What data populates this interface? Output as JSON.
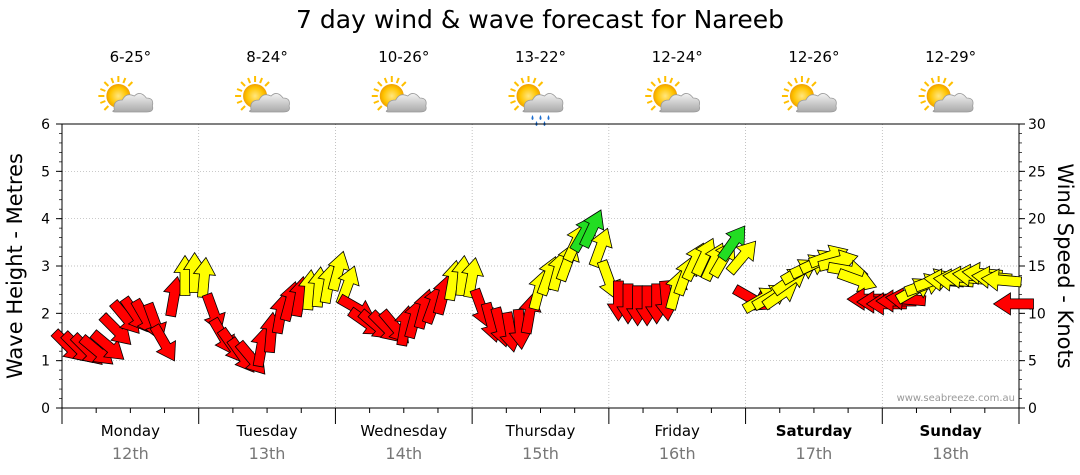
{
  "chart_data": {
    "type": "scatter",
    "title": "7 day wind & wave forecast for Nareeb",
    "y_left_label": "Wave Height - Metres",
    "y_right_label": "Wind Speed - Knots",
    "y_left_range": [
      0,
      6
    ],
    "y_right_range": [
      0,
      30
    ],
    "y_left_ticks": [
      "0",
      "1",
      "2",
      "3",
      "4",
      "5",
      "6"
    ],
    "y_right_ticks": [
      "0",
      "5",
      "10",
      "15",
      "20",
      "25",
      "30"
    ],
    "grid": true,
    "credit": "www.seabreeze.com.au",
    "days": [
      {
        "name": "Monday",
        "date": "12th",
        "temp": "6-25°",
        "weather": "partly-cloudy-icon",
        "bold": false
      },
      {
        "name": "Tuesday",
        "date": "13th",
        "temp": "8-24°",
        "weather": "partly-cloudy-icon",
        "bold": false
      },
      {
        "name": "Wednesday",
        "date": "14th",
        "temp": "10-26°",
        "weather": "partly-cloudy-icon",
        "bold": false
      },
      {
        "name": "Thursday",
        "date": "15th",
        "temp": "13-22°",
        "weather": "showers-icon",
        "bold": false
      },
      {
        "name": "Friday",
        "date": "16th",
        "temp": "12-24°",
        "weather": "partly-cloudy-icon",
        "bold": false
      },
      {
        "name": "Saturday",
        "date": "17th",
        "temp": "12-26°",
        "weather": "partly-cloudy-icon",
        "bold": true
      },
      {
        "name": "Sunday",
        "date": "18th",
        "temp": "12-29°",
        "weather": "partly-cloudy-icon",
        "bold": true
      }
    ],
    "wind_colors": {
      "red": "#ff0000",
      "yellow": "#ffff00",
      "green": "#22dd22"
    },
    "wind_note": "Arrow direction = wind heading (degrees, 0 = up/north, clockwise); y = wind speed in knots (right axis)",
    "wind": [
      {
        "t": 0.05,
        "kn": 6.5,
        "dir": 135,
        "color": "red"
      },
      {
        "t": 0.12,
        "kn": 6.3,
        "dir": 135,
        "color": "red"
      },
      {
        "t": 0.19,
        "kn": 6.1,
        "dir": 135,
        "color": "red"
      },
      {
        "t": 0.26,
        "kn": 6.0,
        "dir": 130,
        "color": "red"
      },
      {
        "t": 0.34,
        "kn": 6.5,
        "dir": 130,
        "color": "red"
      },
      {
        "t": 0.4,
        "kn": 8.2,
        "dir": 135,
        "color": "red"
      },
      {
        "t": 0.47,
        "kn": 9.5,
        "dir": 140,
        "color": "red"
      },
      {
        "t": 0.54,
        "kn": 9.8,
        "dir": 145,
        "color": "red"
      },
      {
        "t": 0.61,
        "kn": 9.5,
        "dir": 150,
        "color": "red"
      },
      {
        "t": 0.68,
        "kn": 9.0,
        "dir": 160,
        "color": "red"
      },
      {
        "t": 0.75,
        "kn": 6.8,
        "dir": 150,
        "color": "red"
      },
      {
        "t": 0.82,
        "kn": 11.8,
        "dir": 10,
        "color": "red"
      },
      {
        "t": 0.9,
        "kn": 14.0,
        "dir": 0,
        "color": "yellow"
      },
      {
        "t": 0.97,
        "kn": 14.3,
        "dir": 0,
        "color": "yellow"
      },
      {
        "t": 1.04,
        "kn": 13.8,
        "dir": 5,
        "color": "yellow"
      },
      {
        "t": 1.11,
        "kn": 10.0,
        "dir": 160,
        "color": "red"
      },
      {
        "t": 1.18,
        "kn": 7.5,
        "dir": 150,
        "color": "red"
      },
      {
        "t": 1.25,
        "kn": 6.5,
        "dir": 145,
        "color": "red"
      },
      {
        "t": 1.32,
        "kn": 5.5,
        "dir": 145,
        "color": "red"
      },
      {
        "t": 1.39,
        "kn": 5.2,
        "dir": 140,
        "color": "red"
      },
      {
        "t": 1.46,
        "kn": 6.5,
        "dir": 10,
        "color": "red"
      },
      {
        "t": 1.53,
        "kn": 8.0,
        "dir": 5,
        "color": "red"
      },
      {
        "t": 1.6,
        "kn": 10.0,
        "dir": 10,
        "color": "red"
      },
      {
        "t": 1.67,
        "kn": 11.3,
        "dir": 15,
        "color": "red"
      },
      {
        "t": 1.74,
        "kn": 11.8,
        "dir": 10,
        "color": "red"
      },
      {
        "t": 1.81,
        "kn": 12.5,
        "dir": 5,
        "color": "yellow"
      },
      {
        "t": 1.88,
        "kn": 12.8,
        "dir": 5,
        "color": "yellow"
      },
      {
        "t": 1.95,
        "kn": 13.2,
        "dir": 10,
        "color": "yellow"
      },
      {
        "t": 2.02,
        "kn": 14.5,
        "dir": 15,
        "color": "yellow"
      },
      {
        "t": 2.09,
        "kn": 13.0,
        "dir": 20,
        "color": "yellow"
      },
      {
        "t": 2.16,
        "kn": 10.5,
        "dir": 120,
        "color": "red"
      },
      {
        "t": 2.23,
        "kn": 9.0,
        "dir": 125,
        "color": "red"
      },
      {
        "t": 2.3,
        "kn": 8.7,
        "dir": 130,
        "color": "red"
      },
      {
        "t": 2.37,
        "kn": 8.5,
        "dir": 135,
        "color": "red"
      },
      {
        "t": 2.44,
        "kn": 8.5,
        "dir": 140,
        "color": "red"
      },
      {
        "t": 2.51,
        "kn": 8.7,
        "dir": 10,
        "color": "red"
      },
      {
        "t": 2.58,
        "kn": 9.5,
        "dir": 15,
        "color": "red"
      },
      {
        "t": 2.65,
        "kn": 10.5,
        "dir": 15,
        "color": "red"
      },
      {
        "t": 2.72,
        "kn": 11.0,
        "dir": 20,
        "color": "red"
      },
      {
        "t": 2.79,
        "kn": 12.0,
        "dir": 15,
        "color": "red"
      },
      {
        "t": 2.86,
        "kn": 13.5,
        "dir": 10,
        "color": "yellow"
      },
      {
        "t": 2.93,
        "kn": 14.0,
        "dir": 5,
        "color": "yellow"
      },
      {
        "t": 3.0,
        "kn": 13.8,
        "dir": 10,
        "color": "yellow"
      },
      {
        "t": 3.07,
        "kn": 10.5,
        "dir": 160,
        "color": "red"
      },
      {
        "t": 3.14,
        "kn": 9.0,
        "dir": 165,
        "color": "red"
      },
      {
        "t": 3.21,
        "kn": 8.5,
        "dir": 165,
        "color": "red"
      },
      {
        "t": 3.28,
        "kn": 8.0,
        "dir": 170,
        "color": "red"
      },
      {
        "t": 3.35,
        "kn": 8.3,
        "dir": 175,
        "color": "red"
      },
      {
        "t": 3.42,
        "kn": 10.0,
        "dir": 10,
        "color": "red"
      },
      {
        "t": 3.49,
        "kn": 12.5,
        "dir": 15,
        "color": "yellow"
      },
      {
        "t": 3.56,
        "kn": 14.0,
        "dir": 20,
        "color": "yellow"
      },
      {
        "t": 3.63,
        "kn": 14.5,
        "dir": 15,
        "color": "yellow"
      },
      {
        "t": 3.7,
        "kn": 15.5,
        "dir": 20,
        "color": "yellow"
      },
      {
        "t": 3.76,
        "kn": 17.5,
        "dir": 25,
        "color": "yellow"
      },
      {
        "t": 3.82,
        "kn": 18.5,
        "dir": 30,
        "color": "green"
      },
      {
        "t": 3.88,
        "kn": 19.0,
        "dir": 25,
        "color": "green"
      },
      {
        "t": 3.94,
        "kn": 17.0,
        "dir": 20,
        "color": "yellow"
      },
      {
        "t": 4.0,
        "kn": 13.5,
        "dir": 160,
        "color": "yellow"
      },
      {
        "t": 4.07,
        "kn": 11.3,
        "dir": 180,
        "color": "red"
      },
      {
        "t": 4.14,
        "kn": 11.0,
        "dir": 180,
        "color": "red"
      },
      {
        "t": 4.21,
        "kn": 10.8,
        "dir": 180,
        "color": "red"
      },
      {
        "t": 4.28,
        "kn": 10.8,
        "dir": 180,
        "color": "red"
      },
      {
        "t": 4.35,
        "kn": 11.0,
        "dir": 180,
        "color": "red"
      },
      {
        "t": 4.42,
        "kn": 11.3,
        "dir": 175,
        "color": "red"
      },
      {
        "t": 4.49,
        "kn": 12.5,
        "dir": 15,
        "color": "yellow"
      },
      {
        "t": 4.56,
        "kn": 14.0,
        "dir": 20,
        "color": "yellow"
      },
      {
        "t": 4.63,
        "kn": 15.5,
        "dir": 25,
        "color": "yellow"
      },
      {
        "t": 4.7,
        "kn": 16.0,
        "dir": 25,
        "color": "yellow"
      },
      {
        "t": 4.77,
        "kn": 15.5,
        "dir": 25,
        "color": "yellow"
      },
      {
        "t": 4.84,
        "kn": 15.8,
        "dir": 30,
        "color": "yellow"
      },
      {
        "t": 4.91,
        "kn": 17.5,
        "dir": 35,
        "color": "green"
      },
      {
        "t": 4.98,
        "kn": 16.0,
        "dir": 40,
        "color": "yellow"
      },
      {
        "t": 5.05,
        "kn": 11.5,
        "dir": 120,
        "color": "red"
      },
      {
        "t": 5.12,
        "kn": 11.5,
        "dir": 60,
        "color": "yellow"
      },
      {
        "t": 5.19,
        "kn": 11.8,
        "dir": 60,
        "color": "yellow"
      },
      {
        "t": 5.26,
        "kn": 12.0,
        "dir": 55,
        "color": "yellow"
      },
      {
        "t": 5.33,
        "kn": 13.5,
        "dir": 55,
        "color": "yellow"
      },
      {
        "t": 5.4,
        "kn": 14.5,
        "dir": 60,
        "color": "yellow"
      },
      {
        "t": 5.47,
        "kn": 15.0,
        "dir": 65,
        "color": "yellow"
      },
      {
        "t": 5.54,
        "kn": 15.5,
        "dir": 65,
        "color": "yellow"
      },
      {
        "t": 5.61,
        "kn": 16.0,
        "dir": 70,
        "color": "yellow"
      },
      {
        "t": 5.68,
        "kn": 15.5,
        "dir": 75,
        "color": "yellow"
      },
      {
        "t": 5.75,
        "kn": 14.5,
        "dir": 100,
        "color": "yellow"
      },
      {
        "t": 5.82,
        "kn": 13.5,
        "dir": 110,
        "color": "yellow"
      },
      {
        "t": 5.89,
        "kn": 11.5,
        "dir": 270,
        "color": "red"
      },
      {
        "t": 5.96,
        "kn": 11.2,
        "dir": 270,
        "color": "red"
      },
      {
        "t": 6.03,
        "kn": 11.0,
        "dir": 270,
        "color": "red"
      },
      {
        "t": 6.1,
        "kn": 11.3,
        "dir": 270,
        "color": "red"
      },
      {
        "t": 6.17,
        "kn": 11.5,
        "dir": 275,
        "color": "red"
      },
      {
        "t": 6.24,
        "kn": 12.5,
        "dir": 60,
        "color": "yellow"
      },
      {
        "t": 6.31,
        "kn": 13.0,
        "dir": 70,
        "color": "yellow"
      },
      {
        "t": 6.38,
        "kn": 13.5,
        "dir": 70,
        "color": "yellow"
      },
      {
        "t": 6.45,
        "kn": 13.5,
        "dir": 275,
        "color": "yellow"
      },
      {
        "t": 6.52,
        "kn": 13.5,
        "dir": 275,
        "color": "yellow"
      },
      {
        "t": 6.59,
        "kn": 13.8,
        "dir": 275,
        "color": "yellow"
      },
      {
        "t": 6.66,
        "kn": 14.0,
        "dir": 275,
        "color": "yellow"
      },
      {
        "t": 6.73,
        "kn": 14.2,
        "dir": 275,
        "color": "yellow"
      },
      {
        "t": 6.8,
        "kn": 13.8,
        "dir": 275,
        "color": "yellow"
      },
      {
        "t": 6.87,
        "kn": 13.5,
        "dir": 275,
        "color": "yellow"
      },
      {
        "t": 6.96,
        "kn": 11.0,
        "dir": 270,
        "color": "red"
      }
    ]
  }
}
